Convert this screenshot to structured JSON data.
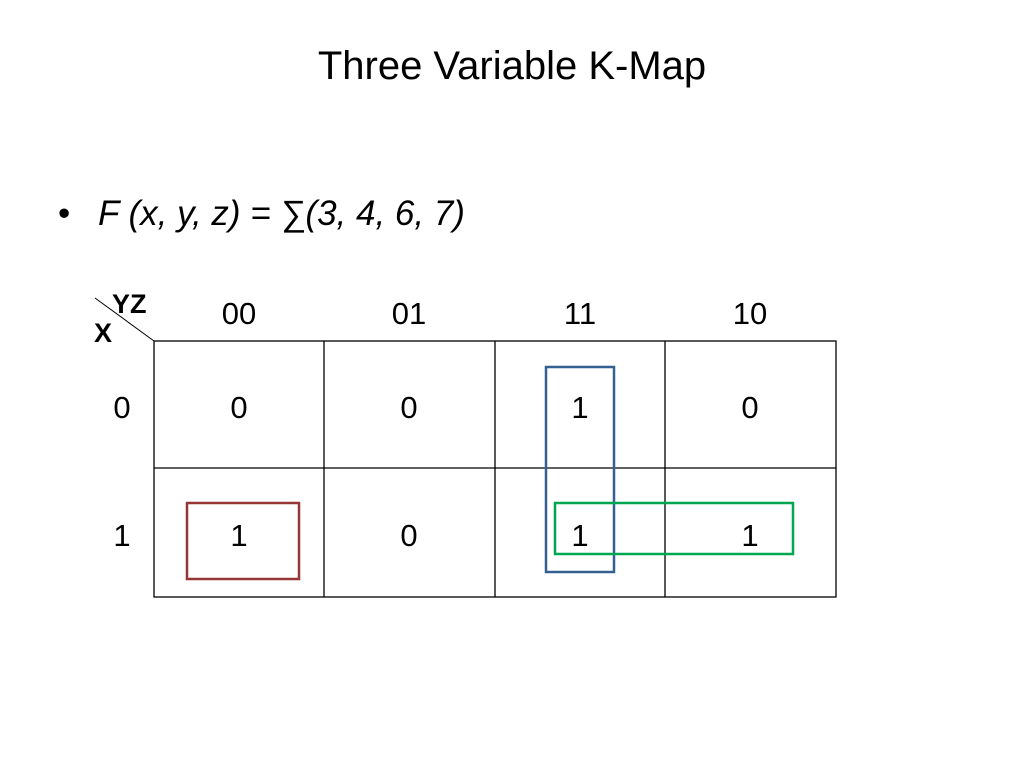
{
  "slide": {
    "title": "Three Variable K-Map",
    "bullet_marker": "•",
    "bullet_text": "F (x, y, z) = ∑(3, 4, 6, 7)"
  },
  "kmap": {
    "col_var_label": "YZ",
    "row_var_label": "X",
    "col_headers": [
      "00",
      "01",
      "11",
      "10"
    ],
    "row_headers": [
      "0",
      "1"
    ],
    "cells": [
      [
        "0",
        "0",
        "1",
        "0"
      ],
      [
        "1",
        "0",
        "1",
        "1"
      ]
    ],
    "groups": [
      {
        "name": "group-minterm-4",
        "color": "#953735"
      },
      {
        "name": "group-minterms-3-7",
        "color": "#376092"
      },
      {
        "name": "group-minterms-6-7",
        "color": "#00a651"
      }
    ]
  }
}
